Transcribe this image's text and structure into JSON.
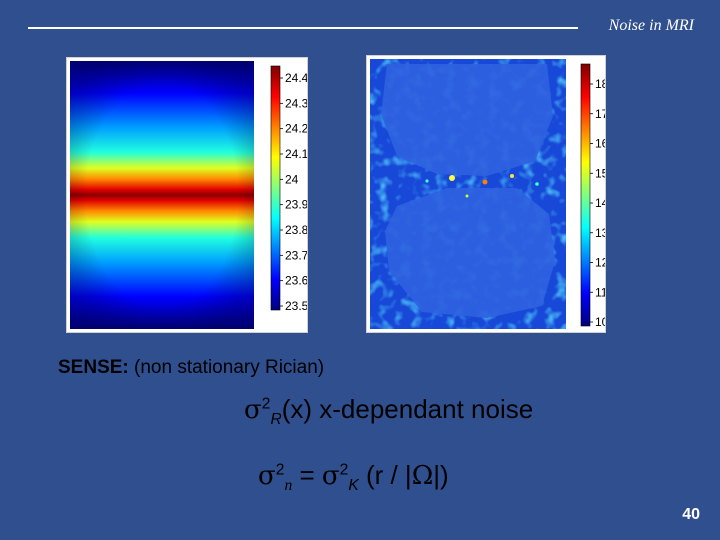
{
  "header": {
    "title": "Noise in MRI"
  },
  "left_panel": {
    "colorbar_ticks": [
      "24.4",
      "24.3",
      "24.2",
      "24.1",
      "24",
      "23.9",
      "23.8",
      "23.7",
      "23.6",
      "23.5"
    ]
  },
  "right_panel": {
    "colorbar_ticks": [
      "18",
      "17",
      "16",
      "15",
      "14",
      "13",
      "12",
      "11",
      "10"
    ]
  },
  "caption": {
    "bold": "SENSE:",
    "rest": " (non stationary Rician)"
  },
  "formula1": {
    "sigma": "σ",
    "exp": "2",
    "sub": "R",
    "rest": "(x) x-dependant noise"
  },
  "formula2": {
    "sigma_a": "σ",
    "exp_a": "2",
    "sub_a": "n",
    "eq": " = ",
    "sigma_b": "σ",
    "exp_b": "2",
    "sub_b": "K",
    "rest_a": " (r / |",
    "omega": "Ω",
    "rest_b": "|)"
  },
  "page_number": "40",
  "colors": {
    "background": "#2f4f8e",
    "text": "#000000",
    "header": "#ffffff"
  }
}
